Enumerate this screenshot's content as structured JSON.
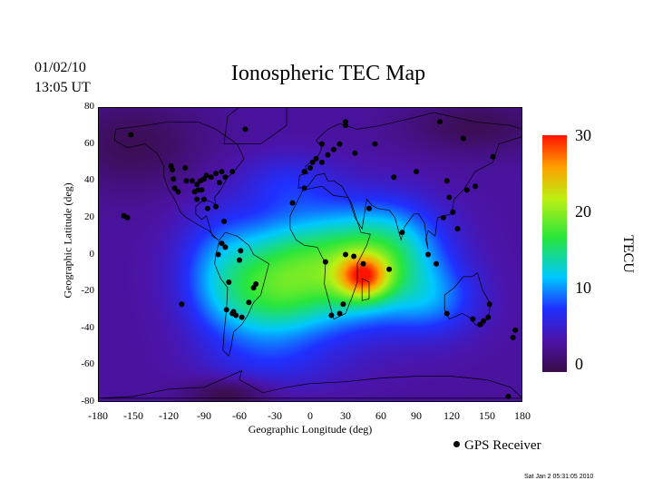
{
  "header": {
    "date": "01/02/10",
    "time": "13:05 UT",
    "title": "Ionospheric TEC Map"
  },
  "axes": {
    "xlabel": "Geographic Longitude (deg)",
    "ylabel": "Geographic Latitude (deg)",
    "x_ticks": [
      "-180",
      "-150",
      "-120",
      "-90",
      "-60",
      "-30",
      "0",
      "30",
      "60",
      "90",
      "120",
      "150",
      "180"
    ],
    "y_ticks": [
      "80",
      "60",
      "40",
      "20",
      "0",
      "-20",
      "-40",
      "-60",
      "-80"
    ]
  },
  "colorbar": {
    "label": "TECU",
    "ticks": [
      "30",
      "20",
      "10",
      "0"
    ]
  },
  "legend": {
    "label": "GPS Receiver"
  },
  "footer": {
    "stamp": "Sat Jan  2 05:31:05 2010"
  },
  "chart_data": {
    "type": "heatmap",
    "title": "Ionospheric TEC Map",
    "xlabel": "Geographic Longitude (deg)",
    "ylabel": "Geographic Latitude (deg)",
    "xlim": [
      -180,
      180
    ],
    "ylim": [
      -80,
      80
    ],
    "colorbar": {
      "label": "TECU",
      "range": [
        0,
        30
      ]
    },
    "colors": {
      "low": "#3a0d4a",
      "mid_low": "#2030ff",
      "mid": "#00d8ff",
      "mid_high": "#20e020",
      "high": "#ffd000",
      "max": "#ff2000"
    },
    "tec_features": [
      {
        "lon": 45,
        "lat": -12,
        "tec": 30
      },
      {
        "lon": 20,
        "lat": -10,
        "tec": 19
      },
      {
        "lon": -10,
        "lat": -5,
        "tec": 16
      },
      {
        "lon": 80,
        "lat": 5,
        "tec": 15
      },
      {
        "lon": -60,
        "lat": -35,
        "tec": 12
      },
      {
        "lon": 110,
        "lat": -25,
        "tec": 11
      }
    ],
    "gps_receivers": [
      [
        -152,
        65
      ],
      [
        -118,
        48
      ],
      [
        -117,
        46
      ],
      [
        -105,
        40
      ],
      [
        -100,
        40
      ],
      [
        -96,
        38
      ],
      [
        -93,
        40
      ],
      [
        -90,
        41
      ],
      [
        -88,
        43
      ],
      [
        -84,
        42
      ],
      [
        -80,
        44
      ],
      [
        -77,
        39
      ],
      [
        -72,
        42
      ],
      [
        -75,
        45
      ],
      [
        -90,
        30
      ],
      [
        -96,
        30
      ],
      [
        -95,
        35
      ],
      [
        -116,
        41
      ],
      [
        -115,
        36
      ],
      [
        -112,
        34
      ],
      [
        -155,
        20
      ],
      [
        -158,
        21
      ],
      [
        -73,
        18
      ],
      [
        -66,
        45
      ],
      [
        -55,
        68
      ],
      [
        -106,
        47
      ],
      [
        -98,
        34
      ],
      [
        -92,
        35
      ],
      [
        -87,
        25
      ],
      [
        -80,
        26
      ],
      [
        -75,
        6
      ],
      [
        -78,
        0
      ],
      [
        -72,
        4
      ],
      [
        -59,
        2
      ],
      [
        -60,
        -3
      ],
      [
        -46,
        -16
      ],
      [
        -48,
        -18
      ],
      [
        -71,
        -30
      ],
      [
        -66,
        -32
      ],
      [
        -58,
        -34
      ],
      [
        -63,
        -33
      ],
      [
        -52,
        -26
      ],
      [
        -69,
        -15
      ],
      [
        -65,
        -31
      ],
      [
        -109,
        -27
      ],
      [
        -5,
        45
      ],
      [
        0,
        47
      ],
      [
        5,
        52
      ],
      [
        10,
        50
      ],
      [
        15,
        54
      ],
      [
        20,
        57
      ],
      [
        25,
        60
      ],
      [
        -5,
        36
      ],
      [
        -15,
        28
      ],
      [
        30,
        70
      ],
      [
        30,
        72
      ],
      [
        38,
        55
      ],
      [
        55,
        60
      ],
      [
        90,
        45
      ],
      [
        110,
        72
      ],
      [
        130,
        63
      ],
      [
        155,
        53
      ],
      [
        10,
        60
      ],
      [
        2,
        50
      ],
      [
        13,
        -4
      ],
      [
        30,
        0
      ],
      [
        37,
        -1
      ],
      [
        45,
        -5
      ],
      [
        67,
        -8
      ],
      [
        28,
        -27
      ],
      [
        18,
        -33
      ],
      [
        25,
        -32
      ],
      [
        50,
        25
      ],
      [
        71,
        42
      ],
      [
        78,
        12
      ],
      [
        100,
        0
      ],
      [
        107,
        -5
      ],
      [
        113,
        20
      ],
      [
        121,
        23
      ],
      [
        125,
        14
      ],
      [
        133,
        35
      ],
      [
        140,
        37
      ],
      [
        116,
        -32
      ],
      [
        138,
        -35
      ],
      [
        147,
        -36
      ],
      [
        151,
        -34
      ],
      [
        144,
        -38
      ],
      [
        152,
        -27
      ],
      [
        174,
        -41
      ],
      [
        172,
        -45
      ],
      [
        168,
        -77
      ],
      [
        118,
        31
      ],
      [
        116,
        40
      ]
    ]
  }
}
